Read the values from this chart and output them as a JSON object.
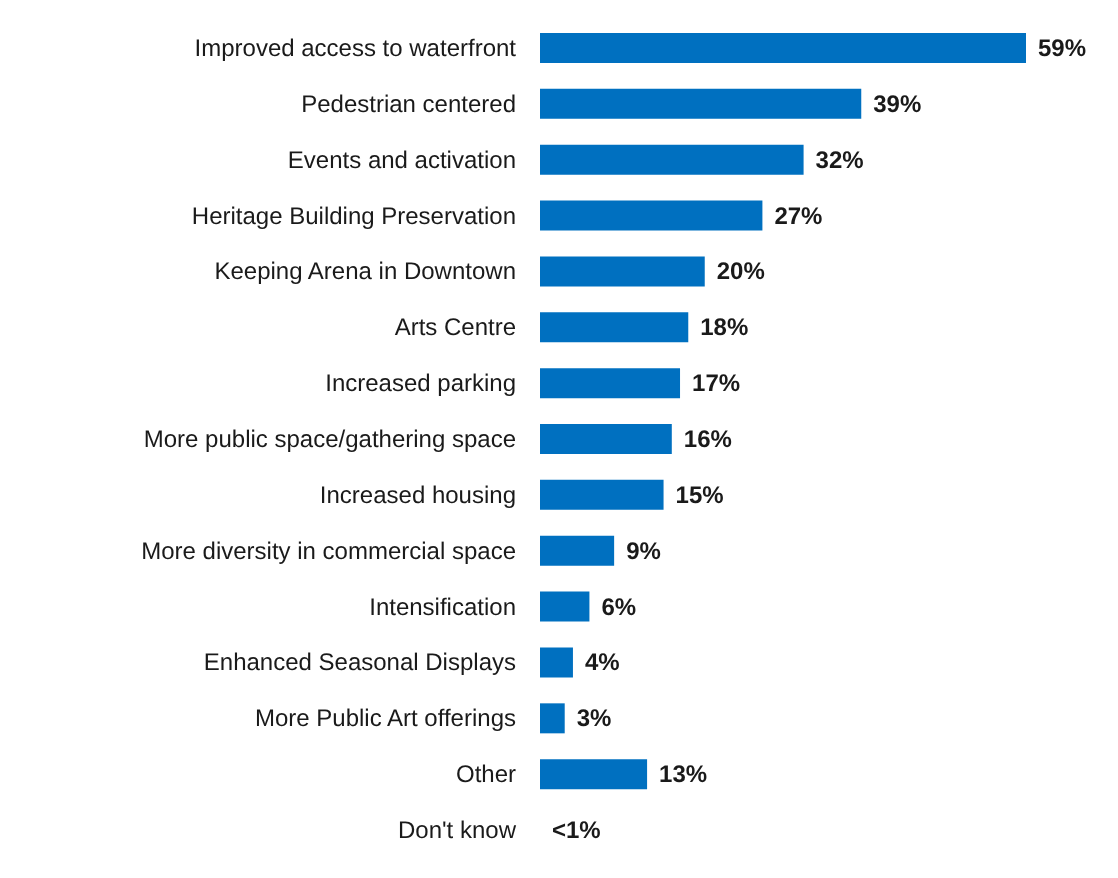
{
  "chart_data": {
    "type": "bar",
    "orientation": "horizontal",
    "categories": [
      "Improved access to waterfront",
      "Pedestrian centered",
      "Events and activation",
      "Heritage Building Preservation",
      "Keeping Arena in Downtown",
      "Arts Centre",
      "Increased parking",
      "More public space/gathering space",
      "Increased housing",
      "More diversity in commercial space",
      "Intensification",
      "Enhanced Seasonal Displays",
      "More Public Art offerings",
      "Other",
      "Don't know"
    ],
    "values": [
      59,
      39,
      32,
      27,
      20,
      18,
      17,
      16,
      15,
      9,
      6,
      4,
      3,
      13,
      0
    ],
    "value_labels": [
      "59%",
      "39%",
      "32%",
      "27%",
      "20%",
      "18%",
      "17%",
      "16%",
      "15%",
      "9%",
      "6%",
      "4%",
      "3%",
      "13%",
      "<1%"
    ],
    "color": "#0070c0"
  }
}
